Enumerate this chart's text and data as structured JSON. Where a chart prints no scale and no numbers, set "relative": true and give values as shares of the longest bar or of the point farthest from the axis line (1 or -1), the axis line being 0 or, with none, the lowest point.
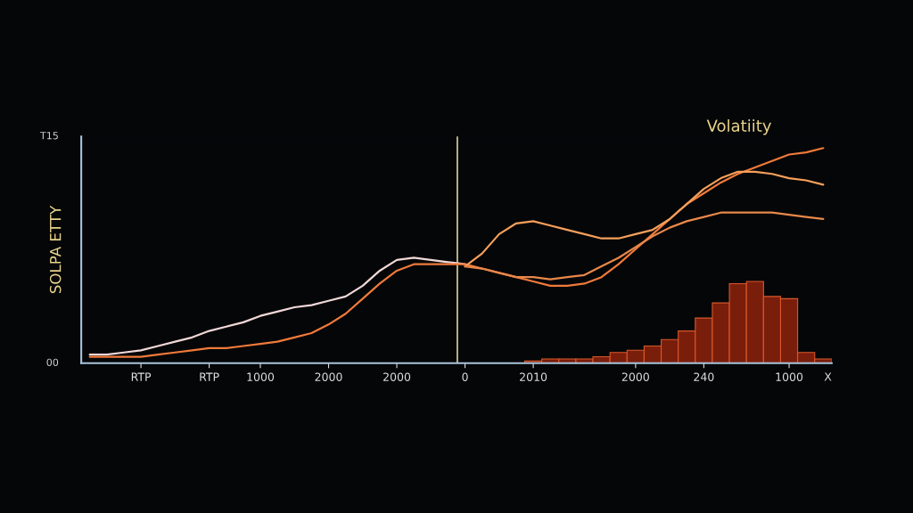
{
  "chart_data": {
    "type": "line",
    "title": "Volatiity",
    "ylabel": "SOLPA ETTY",
    "xlabel": "X",
    "relative": true,
    "categories": [
      null,
      null,
      null,
      "RTP",
      null,
      null,
      null,
      "RTP",
      null,
      null,
      "1000",
      null,
      null,
      null,
      "2000",
      null,
      null,
      null,
      "2000",
      null,
      null,
      null,
      "0",
      null,
      null,
      null,
      "2010",
      null,
      null,
      null,
      null,
      null,
      "2000",
      null,
      null,
      null,
      "240",
      null,
      null,
      null,
      null,
      "1000",
      null,
      null
    ],
    "series": [
      {
        "color": "#f2d8d8",
        "values": [
          0.04,
          0.04,
          0.05,
          0.06,
          0.08,
          0.1,
          0.12,
          0.15,
          0.17,
          0.19,
          0.22,
          0.24,
          0.26,
          0.27,
          0.29,
          0.31,
          0.36,
          0.43,
          0.48,
          0.49,
          0.48,
          0.47,
          0.46,
          null,
          null,
          null,
          null,
          null,
          null,
          null,
          null,
          null,
          null,
          null,
          null,
          null,
          null,
          null,
          null,
          null,
          null,
          null,
          null,
          null
        ]
      },
      {
        "color": "#f07a3a",
        "values": [
          0.03,
          0.03,
          0.03,
          0.03,
          0.04,
          0.05,
          0.06,
          0.07,
          0.07,
          0.08,
          0.09,
          0.1,
          0.12,
          0.14,
          0.18,
          0.23,
          0.3,
          0.37,
          0.43,
          0.46,
          0.46,
          0.46,
          0.46,
          0.44,
          0.42,
          0.4,
          0.38,
          0.36,
          0.36,
          0.37,
          0.4,
          0.46,
          0.53,
          0.6,
          0.67,
          0.74,
          0.79,
          0.84,
          0.88,
          0.91,
          0.94,
          0.97,
          0.98,
          1.0
        ]
      },
      {
        "color": "#f5a05a",
        "values": [
          null,
          null,
          null,
          null,
          null,
          null,
          null,
          null,
          null,
          null,
          null,
          null,
          null,
          null,
          null,
          null,
          null,
          null,
          null,
          null,
          null,
          null,
          0.45,
          0.51,
          0.6,
          0.65,
          0.66,
          0.64,
          0.62,
          0.6,
          0.58,
          0.58,
          0.6,
          0.62,
          0.67,
          0.74,
          0.81,
          0.86,
          0.89,
          0.89,
          0.88,
          0.86,
          0.85,
          0.83
        ]
      },
      {
        "color": "#e8884a",
        "values": [
          null,
          null,
          null,
          null,
          null,
          null,
          null,
          null,
          null,
          null,
          null,
          null,
          null,
          null,
          null,
          null,
          null,
          null,
          null,
          null,
          null,
          null,
          0.45,
          0.44,
          0.42,
          0.4,
          0.4,
          0.39,
          0.4,
          0.41,
          0.45,
          0.49,
          0.54,
          0.59,
          0.63,
          0.66,
          0.68,
          0.7,
          0.7,
          0.7,
          0.7,
          0.69,
          0.68,
          0.67
        ]
      },
      {
        "type": "bar",
        "color": "#7a1e0c",
        "values": [
          null,
          null,
          null,
          null,
          null,
          null,
          null,
          null,
          null,
          null,
          null,
          null,
          null,
          null,
          null,
          null,
          null,
          null,
          null,
          null,
          null,
          null,
          null,
          null,
          null,
          null,
          0.01,
          0.02,
          0.02,
          0.02,
          0.03,
          0.05,
          0.06,
          0.08,
          0.11,
          0.15,
          0.21,
          0.28,
          0.37,
          0.38,
          0.31,
          0.3,
          0.05,
          0.02
        ]
      }
    ],
    "ref_lines": [
      {
        "axis": "x",
        "value": "0",
        "color": "#d8cfa0"
      }
    ],
    "annotations": [
      "T15",
      "00"
    ]
  }
}
